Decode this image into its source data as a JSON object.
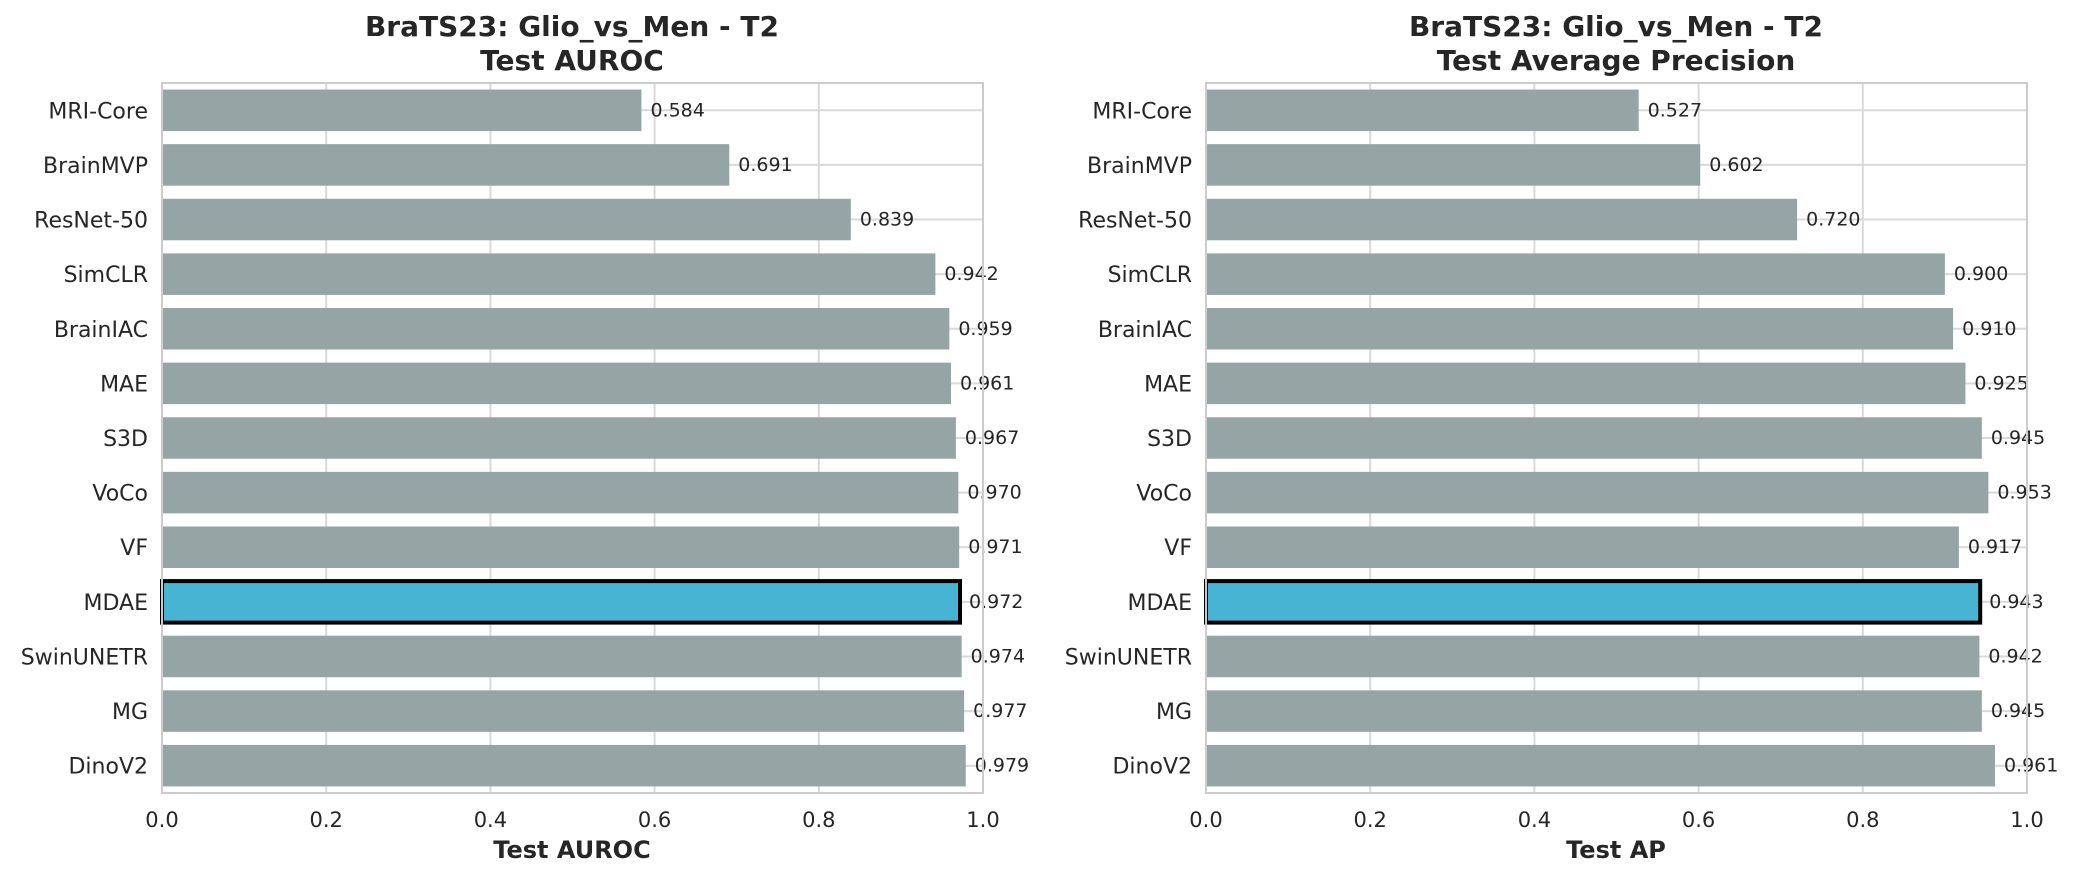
{
  "colors": {
    "bar": "#95a5a6",
    "highlight": "#46b4d2",
    "highlight_edge": "#000000",
    "grid": "#d9d9d9",
    "frame": "#cccccc",
    "text": "#262626"
  },
  "chart_data": [
    {
      "type": "bar",
      "orientation": "horizontal",
      "title": "BraTS23: Glio_vs_Men - T2",
      "subtitle": "Test AUROC",
      "xlabel": "Test AUROC",
      "ylabel": "",
      "xlim": [
        0.0,
        1.0
      ],
      "xticks": [
        "0.0",
        "0.2",
        "0.4",
        "0.6",
        "0.8",
        "1.0"
      ],
      "grid": true,
      "highlight": "MDAE",
      "categories": [
        "MRI-Core",
        "BrainMVP",
        "ResNet-50",
        "SimCLR",
        "BrainIAC",
        "MAE",
        "S3D",
        "VoCo",
        "VF",
        "MDAE",
        "SwinUNETR",
        "MG",
        "DinoV2"
      ],
      "values": [
        0.584,
        0.691,
        0.839,
        0.942,
        0.959,
        0.961,
        0.967,
        0.97,
        0.971,
        0.972,
        0.974,
        0.977,
        0.979
      ],
      "value_labels": [
        "0.584",
        "0.691",
        "0.839",
        "0.942",
        "0.959",
        "0.961",
        "0.967",
        "0.970",
        "0.971",
        "0.972",
        "0.974",
        "0.977",
        "0.979"
      ]
    },
    {
      "type": "bar",
      "orientation": "horizontal",
      "title": "BraTS23: Glio_vs_Men - T2",
      "subtitle": "Test Average Precision",
      "xlabel": "Test AP",
      "ylabel": "",
      "xlim": [
        0.0,
        1.0
      ],
      "xticks": [
        "0.0",
        "0.2",
        "0.4",
        "0.6",
        "0.8",
        "1.0"
      ],
      "grid": true,
      "highlight": "MDAE",
      "categories": [
        "MRI-Core",
        "BrainMVP",
        "ResNet-50",
        "SimCLR",
        "BrainIAC",
        "MAE",
        "S3D",
        "VoCo",
        "VF",
        "MDAE",
        "SwinUNETR",
        "MG",
        "DinoV2"
      ],
      "values": [
        0.527,
        0.602,
        0.72,
        0.9,
        0.91,
        0.925,
        0.945,
        0.953,
        0.917,
        0.943,
        0.942,
        0.945,
        0.961
      ],
      "value_labels": [
        "0.527",
        "0.602",
        "0.720",
        "0.900",
        "0.910",
        "0.925",
        "0.945",
        "0.953",
        "0.917",
        "0.943",
        "0.942",
        "0.945",
        "0.961"
      ]
    }
  ]
}
